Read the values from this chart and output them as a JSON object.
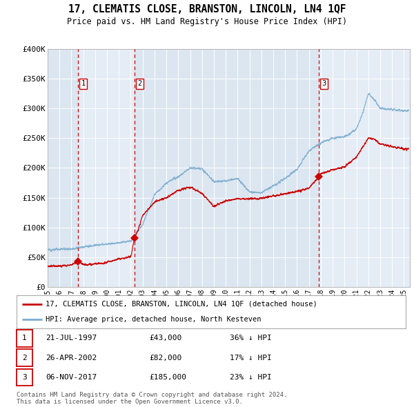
{
  "title": "17, CLEMATIS CLOSE, BRANSTON, LINCOLN, LN4 1QF",
  "subtitle": "Price paid vs. HM Land Registry's House Price Index (HPI)",
  "plot_bg_color": "#dce6f0",
  "hpi_color": "#7aabcf",
  "price_color": "#cc0000",
  "grid_color": "#ffffff",
  "vline_dates": [
    1997.57,
    2002.32,
    2017.85
  ],
  "purchase_points": [
    [
      1997.57,
      43000
    ],
    [
      2002.32,
      82000
    ],
    [
      2017.85,
      185000
    ]
  ],
  "ylim": [
    0,
    400000
  ],
  "xlim": [
    1995.0,
    2025.5
  ],
  "yticks": [
    0,
    50000,
    100000,
    150000,
    200000,
    250000,
    300000,
    350000,
    400000
  ],
  "ytick_labels": [
    "£0",
    "£50K",
    "£100K",
    "£150K",
    "£200K",
    "£250K",
    "£300K",
    "£350K",
    "£400K"
  ],
  "xtick_years": [
    1995,
    1996,
    1997,
    1998,
    1999,
    2000,
    2001,
    2002,
    2003,
    2004,
    2005,
    2006,
    2007,
    2008,
    2009,
    2010,
    2011,
    2012,
    2013,
    2014,
    2015,
    2016,
    2017,
    2018,
    2019,
    2020,
    2021,
    2022,
    2023,
    2024,
    2025
  ],
  "legend_price_label": "17, CLEMATIS CLOSE, BRANSTON, LINCOLN, LN4 1QF (detached house)",
  "legend_hpi_label": "HPI: Average price, detached house, North Kesteven",
  "table_rows": [
    {
      "num": "1",
      "date": "21-JUL-1997",
      "price": "£43,000",
      "hpi": "36% ↓ HPI"
    },
    {
      "num": "2",
      "date": "26-APR-2002",
      "price": "£82,000",
      "hpi": "17% ↓ HPI"
    },
    {
      "num": "3",
      "date": "06-NOV-2017",
      "price": "£185,000",
      "hpi": "23% ↓ HPI"
    }
  ],
  "footer": "Contains HM Land Registry data © Crown copyright and database right 2024.\nThis data is licensed under the Open Government Licence v3.0.",
  "shaded_regions": [
    [
      1995.0,
      1997.57
    ],
    [
      1997.57,
      2002.32
    ],
    [
      2002.32,
      2017.85
    ],
    [
      2017.85,
      2025.5
    ]
  ],
  "shade_colors": [
    "#dce6f0",
    "#e4ecf5",
    "#dce6f0",
    "#e4ecf5"
  ],
  "num_labels": [
    {
      "x": 1997.57,
      "label": "1"
    },
    {
      "x": 2002.32,
      "label": "2"
    },
    {
      "x": 2017.85,
      "label": "3"
    }
  ]
}
